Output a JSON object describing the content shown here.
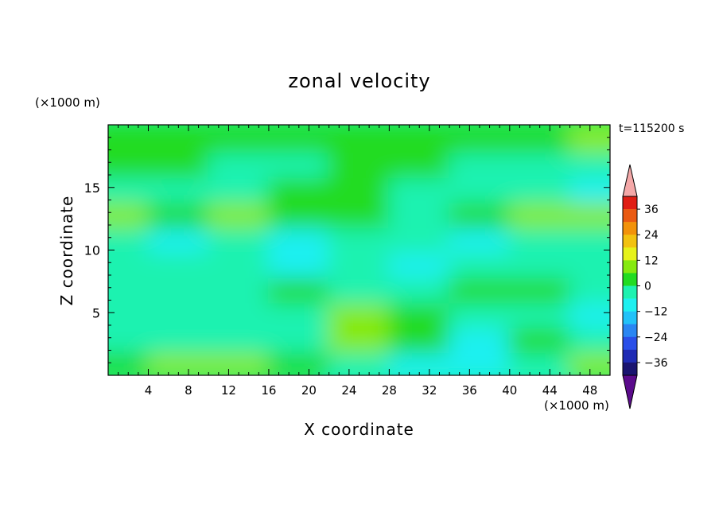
{
  "chart_data": {
    "type": "heatmap",
    "title": "zonal velocity",
    "xlabel": "X coordinate",
    "ylabel": "Z coordinate",
    "x_unit": "(×1000 m)",
    "y_unit": "(×1000 m)",
    "time_label": "t=115200 s",
    "xlim": [
      0,
      50
    ],
    "ylim": [
      0,
      20
    ],
    "xticks": [
      4,
      8,
      12,
      16,
      20,
      24,
      28,
      32,
      36,
      40,
      44,
      48
    ],
    "yticks": [
      5,
      10,
      15
    ],
    "colorbar": {
      "tick_values": [
        36,
        24,
        12,
        0,
        -12,
        -24,
        -36
      ],
      "tick_labels": [
        "36",
        "24",
        "12",
        "0",
        "−12",
        "−24",
        "−36"
      ],
      "range": [
        -42,
        42
      ],
      "step": 6,
      "extend": "both",
      "colors": [
        "#5b0b8c",
        "#1a1470",
        "#1f2bb4",
        "#2a4fe8",
        "#2a86f2",
        "#22c2f8",
        "#1ef0f0",
        "#1ef2b0",
        "#22dc22",
        "#86ea10",
        "#e6f21a",
        "#f2c210",
        "#f2920a",
        "#ea5a12",
        "#e01e14",
        "#f4a8a8"
      ]
    },
    "field_samples": {
      "x": [
        1,
        7,
        13,
        19,
        25,
        31,
        37,
        43,
        49
      ],
      "z": [
        1,
        3,
        5,
        7,
        9,
        11,
        13,
        15,
        17,
        19
      ],
      "u": [
        [
          2,
          6,
          8,
          4,
          -6,
          -10,
          -8,
          -4,
          6
        ],
        [
          -4,
          -2,
          -2,
          -6,
          6,
          4,
          -8,
          2,
          -2
        ],
        [
          -2,
          -4,
          -6,
          -4,
          10,
          2,
          -4,
          -6,
          -10
        ],
        [
          -4,
          -6,
          -2,
          2,
          -2,
          -6,
          2,
          4,
          -4
        ],
        [
          -2,
          -4,
          -6,
          -8,
          -6,
          -8,
          -6,
          -4,
          -6
        ],
        [
          -6,
          -8,
          -6,
          -8,
          -4,
          -6,
          -8,
          -6,
          -6
        ],
        [
          6,
          4,
          8,
          2,
          0,
          -2,
          2,
          6,
          8
        ],
        [
          -6,
          -4,
          -2,
          0,
          2,
          -2,
          -4,
          -6,
          -8
        ],
        [
          2,
          0,
          -4,
          -2,
          2,
          0,
          -2,
          -4,
          -6
        ],
        [
          4,
          2,
          0,
          2,
          0,
          2,
          4,
          2,
          6
        ]
      ]
    }
  }
}
